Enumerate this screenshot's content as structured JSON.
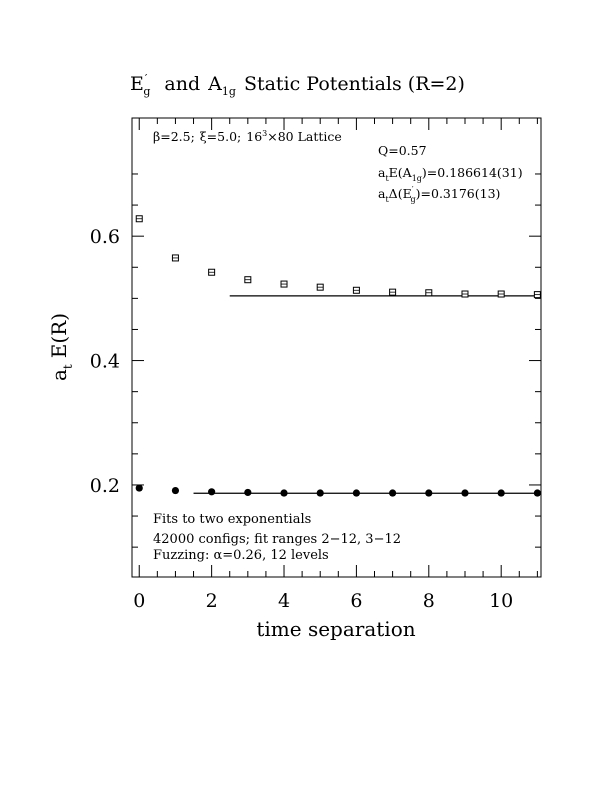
{
  "chart_data": {
    "type": "scatter",
    "title": {
      "part1_main": "E",
      "part1_sup": "′",
      "part1_sub": "g",
      "connector": "and",
      "part2_main": "A",
      "part2_sub": "1g",
      "rest": "Static Potentials (R=2)"
    },
    "xlabel": "time separation",
    "ylabel": {
      "main": "a",
      "sub": "t",
      "rest": "E(R)"
    },
    "xlim": [
      -0.2,
      11.1
    ],
    "ylim": [
      0.052,
      0.79
    ],
    "x_ticks": [
      "0",
      "2",
      "4",
      "6",
      "8",
      "10"
    ],
    "x_tick_values": [
      0,
      2,
      4,
      6,
      8,
      10
    ],
    "y_ticks": [
      "0.2",
      "0.4",
      "0.6"
    ],
    "y_tick_values": [
      0.2,
      0.4,
      0.6
    ],
    "series": [
      {
        "marker": "open-square",
        "x": [
          0,
          1,
          2,
          3,
          4,
          5,
          6,
          7,
          8,
          9,
          10,
          11
        ],
        "y": [
          0.628,
          0.565,
          0.542,
          0.53,
          0.523,
          0.518,
          0.513,
          0.51,
          0.509,
          0.507,
          0.507,
          0.506
        ],
        "fit": {
          "x_range": [
            2.5,
            11.1
          ],
          "value": 0.504
        }
      },
      {
        "marker": "filled-circle",
        "x": [
          0,
          1,
          2,
          3,
          4,
          5,
          6,
          7,
          8,
          9,
          10,
          11
        ],
        "y": [
          0.195,
          0.191,
          0.189,
          0.188,
          0.187,
          0.187,
          0.187,
          0.187,
          0.187,
          0.187,
          0.187,
          0.187
        ],
        "fit": {
          "x_range": [
            1.5,
            11.1
          ],
          "value": 0.1866
        }
      }
    ],
    "annotations": {
      "top_left": {
        "beta": "β=2.5;",
        "xi": "ξ=5.0;",
        "lattice_main": "16",
        "lattice_sup": "3",
        "lattice_rest": "×80 Lattice"
      },
      "top_right": {
        "q": "Q=0.57",
        "line2": {
          "a": "a",
          "a_sub": "t",
          "body": "E(A",
          "body_sub": "1g",
          "tail": ")=0.186614(31)"
        },
        "line3": {
          "a": "a",
          "a_sub": "t",
          "body": "Δ(E",
          "body_sup": "′",
          "body_sub": "g",
          "tail": ")=0.3176(13)"
        }
      },
      "bottom_left": {
        "line1": "Fits to two exponentials",
        "line2": "42000 configs; fit ranges 2−12, 3−12",
        "line3": "Fuzzing: α=0.26, 12 levels"
      }
    }
  }
}
